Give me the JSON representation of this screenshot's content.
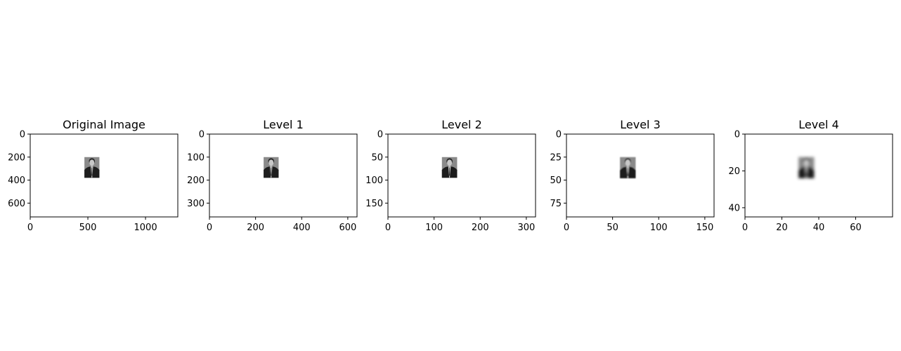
{
  "chart_data": [
    {
      "type": "image",
      "title": "Original Image",
      "xlim": [
        0,
        1280
      ],
      "ylim": [
        720,
        0
      ],
      "xticks": [
        0,
        500,
        1000
      ],
      "yticks": [
        0,
        200,
        400,
        600
      ],
      "content": {
        "x": [
          470,
          600
        ],
        "y": [
          200,
          380
        ]
      },
      "blur": 0
    },
    {
      "type": "image",
      "title": "Level 1",
      "xlim": [
        0,
        640
      ],
      "ylim": [
        360,
        0
      ],
      "xticks": [
        0,
        200,
        400,
        600
      ],
      "yticks": [
        0,
        100,
        200,
        300
      ],
      "content": {
        "x": [
          235,
          300
        ],
        "y": [
          100,
          190
        ]
      },
      "blur": 0
    },
    {
      "type": "image",
      "title": "Level 2",
      "xlim": [
        0,
        320
      ],
      "ylim": [
        180,
        0
      ],
      "xticks": [
        0,
        100,
        200,
        300
      ],
      "yticks": [
        0,
        50,
        100,
        150
      ],
      "content": {
        "x": [
          117,
          150
        ],
        "y": [
          50,
          95
        ]
      },
      "blur": 0.3
    },
    {
      "type": "image",
      "title": "Level 3",
      "xlim": [
        0,
        160
      ],
      "ylim": [
        90,
        0
      ],
      "xticks": [
        0,
        50,
        100,
        150
      ],
      "yticks": [
        0,
        25,
        50,
        75
      ],
      "content": {
        "x": [
          58,
          75
        ],
        "y": [
          25,
          48
        ]
      },
      "blur": 0.8
    },
    {
      "type": "image",
      "title": "Level 4",
      "xlim": [
        0,
        80
      ],
      "ylim": [
        45,
        0
      ],
      "xticks": [
        0,
        20,
        40,
        60
      ],
      "yticks": [
        0,
        20,
        40
      ],
      "content": {
        "x": [
          29,
          37.5
        ],
        "y": [
          12.5,
          24
        ]
      },
      "blur": 2
    }
  ]
}
